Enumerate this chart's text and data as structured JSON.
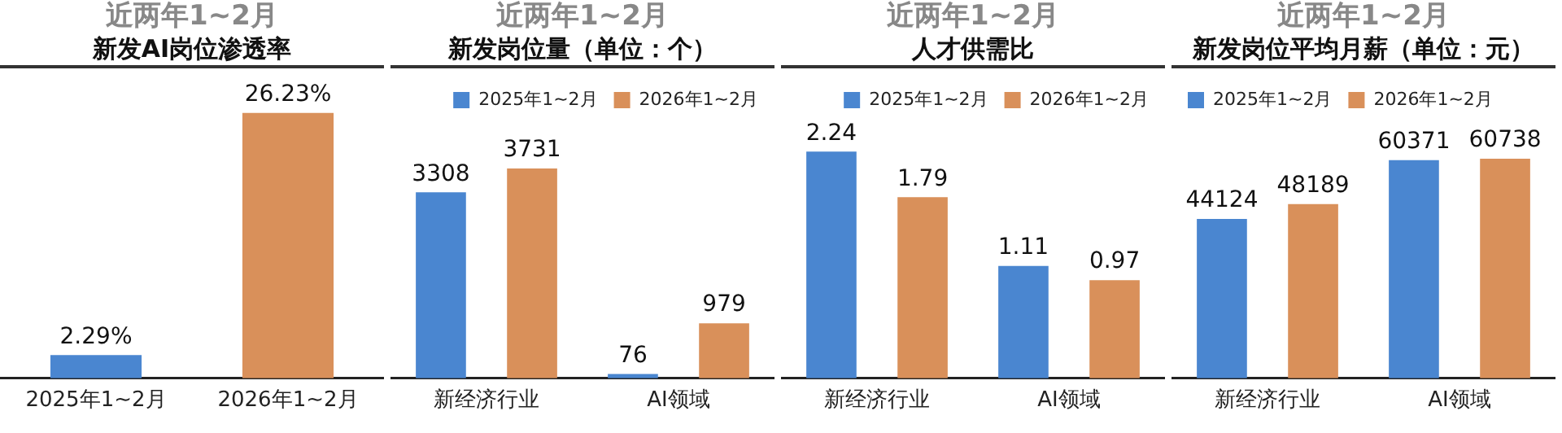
{
  "chart_data": [
    {
      "type": "bar",
      "subtitle": "近两年1~2月",
      "title": "新发AI岗位渗透率",
      "categories": [
        "2025年1~2月",
        "2026年1~2月"
      ],
      "values": [
        2.29,
        26.23
      ],
      "value_labels": [
        "2.29%",
        "26.23%"
      ],
      "colors": [
        "#4a86d0",
        "#d9905a"
      ],
      "grid": false,
      "legend": false
    },
    {
      "type": "bar",
      "subtitle": "近两年1~2月",
      "title": "新发岗位量（单位：个）",
      "categories": [
        "新经济行业",
        "AI领域"
      ],
      "series": [
        {
          "name": "2025年1~2月",
          "color": "#4a86d0",
          "values": [
            3308,
            76
          ]
        },
        {
          "name": "2026年1~2月",
          "color": "#d9905a",
          "values": [
            3731,
            979
          ]
        }
      ],
      "data_labels": true,
      "grid": false,
      "legend": "top right"
    },
    {
      "type": "bar",
      "subtitle": "近两年1~2月",
      "title": "人才供需比",
      "categories": [
        "新经济行业",
        "AI领域"
      ],
      "series": [
        {
          "name": "2025年1~2月",
          "color": "#4a86d0",
          "values": [
            2.24,
            1.11
          ]
        },
        {
          "name": "2026年1~2月",
          "color": "#d9905a",
          "values": [
            1.79,
            0.97
          ]
        }
      ],
      "data_labels": true,
      "grid": false,
      "legend": "top right"
    },
    {
      "type": "bar",
      "subtitle": "近两年1~2月",
      "title": "新发岗位平均月薪（单位：元）",
      "categories": [
        "新经济行业",
        "AI领域"
      ],
      "series": [
        {
          "name": "2025年1~2月",
          "color": "#4a86d0",
          "values": [
            44124,
            60371
          ]
        },
        {
          "name": "2026年1~2月",
          "color": "#d9905a",
          "values": [
            48189,
            60738
          ]
        }
      ],
      "data_labels": true,
      "grid": false,
      "legend": "top left"
    }
  ]
}
